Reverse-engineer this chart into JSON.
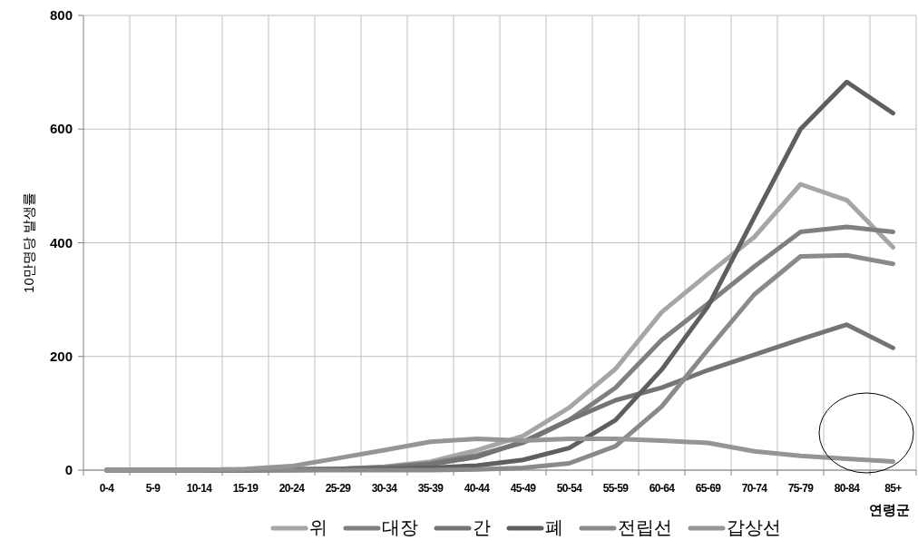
{
  "chart_data": {
    "type": "line",
    "ylabel": "10만명당 발생률",
    "xlabel": "연령군",
    "categories": [
      "0-4",
      "5-9",
      "10-14",
      "15-19",
      "20-24",
      "25-29",
      "30-34",
      "35-39",
      "40-44",
      "45-49",
      "50-54",
      "55-59",
      "60-64",
      "65-69",
      "70-74",
      "75-79",
      "80-84",
      "85+"
    ],
    "ylim": [
      0,
      800
    ],
    "yticks": [
      0,
      200,
      400,
      600,
      800
    ],
    "grid": true,
    "legend": "bottom",
    "series": [
      {
        "name": "위",
        "color": "#a6a6a6",
        "values": [
          0,
          0,
          0,
          0,
          1,
          2,
          6,
          15,
          35,
          60,
          110,
          178,
          278,
          345,
          410,
          503,
          475,
          392
        ]
      },
      {
        "name": "대장",
        "color": "#7f7f7f",
        "values": [
          0,
          0,
          0,
          0,
          1,
          2,
          5,
          12,
          26,
          48,
          88,
          145,
          229,
          293,
          358,
          419,
          428,
          419
        ]
      },
      {
        "name": "간",
        "color": "#747474",
        "values": [
          0,
          0,
          0,
          0,
          1,
          2,
          4,
          10,
          23,
          50,
          88,
          123,
          145,
          176,
          203,
          230,
          256,
          215
        ]
      },
      {
        "name": "폐",
        "color": "#5f5f5f",
        "values": [
          0,
          0,
          0,
          0,
          0,
          1,
          2,
          4,
          8,
          18,
          39,
          88,
          177,
          288,
          445,
          600,
          683,
          628
        ]
      },
      {
        "name": "전립선",
        "color": "#8a8a8a",
        "values": [
          0,
          0,
          0,
          0,
          0,
          0,
          0,
          0,
          1,
          4,
          12,
          42,
          112,
          212,
          309,
          376,
          378,
          363
        ]
      },
      {
        "name": "갑상선",
        "color": "#959595",
        "values": [
          0,
          0,
          0,
          2,
          7,
          21,
          35,
          50,
          55,
          52,
          55,
          55,
          52,
          48,
          33,
          25,
          20,
          15
        ]
      }
    ]
  }
}
